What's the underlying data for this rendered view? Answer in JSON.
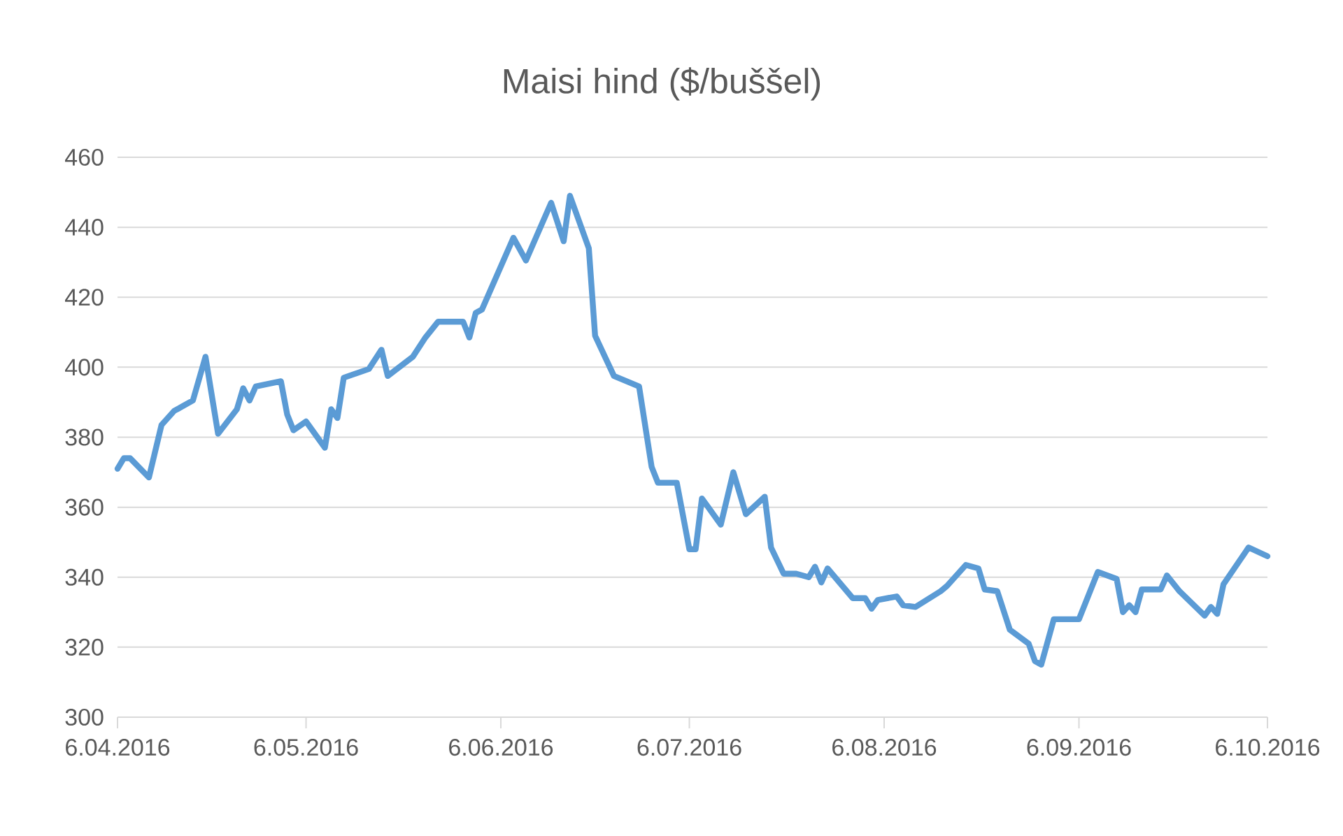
{
  "chart_data": {
    "type": "line",
    "title": "Maisi hind ($/buššel)",
    "x": [
      "2016-04-06",
      "2016-04-07",
      "2016-04-08",
      "2016-04-11",
      "2016-04-13",
      "2016-04-15",
      "2016-04-18",
      "2016-04-20",
      "2016-04-22",
      "2016-04-25",
      "2016-04-26",
      "2016-04-27",
      "2016-04-28",
      "2016-05-02",
      "2016-05-03",
      "2016-05-04",
      "2016-05-06",
      "2016-05-09",
      "2016-05-10",
      "2016-05-11",
      "2016-05-12",
      "2016-05-16",
      "2016-05-18",
      "2016-05-19",
      "2016-05-23",
      "2016-05-25",
      "2016-05-27",
      "2016-05-31",
      "2016-06-01",
      "2016-06-02",
      "2016-06-03",
      "2016-06-08",
      "2016-06-10",
      "2016-06-14",
      "2016-06-16",
      "2016-06-17",
      "2016-06-20",
      "2016-06-21",
      "2016-06-24",
      "2016-06-28",
      "2016-06-30",
      "2016-07-01",
      "2016-07-04",
      "2016-07-06",
      "2016-07-07",
      "2016-07-08",
      "2016-07-11",
      "2016-07-13",
      "2016-07-15",
      "2016-07-18",
      "2016-07-19",
      "2016-07-21",
      "2016-07-23",
      "2016-07-25",
      "2016-07-26",
      "2016-07-27",
      "2016-07-28",
      "2016-08-01",
      "2016-08-03",
      "2016-08-04",
      "2016-08-05",
      "2016-08-08",
      "2016-08-09",
      "2016-08-11",
      "2016-08-15",
      "2016-08-16",
      "2016-08-19",
      "2016-08-21",
      "2016-08-22",
      "2016-08-24",
      "2016-08-26",
      "2016-08-29",
      "2016-08-30",
      "2016-08-31",
      "2016-09-02",
      "2016-09-06",
      "2016-09-09",
      "2016-09-12",
      "2016-09-13",
      "2016-09-14",
      "2016-09-15",
      "2016-09-16",
      "2016-09-19",
      "2016-09-20",
      "2016-09-22",
      "2016-09-26",
      "2016-09-27",
      "2016-09-28",
      "2016-09-29",
      "2016-10-03",
      "2016-10-06"
    ],
    "series": [
      {
        "color": "#5b9bd5",
        "values": [
          371,
          374,
          374,
          368.5,
          383.5,
          387.5,
          390.5,
          403,
          381,
          388,
          394,
          390.5,
          394.5,
          396,
          386.5,
          382,
          384.5,
          377,
          388,
          385.5,
          397,
          399.5,
          405,
          397.5,
          403,
          408.5,
          413,
          413,
          408.5,
          415.5,
          416.5,
          437,
          430.5,
          447,
          436,
          449,
          434,
          409,
          397.5,
          394.5,
          371.5,
          367,
          367,
          348,
          348,
          362.5,
          355,
          370,
          358,
          363,
          348.5,
          341,
          341,
          340,
          343,
          338.5,
          342.5,
          334,
          334,
          331,
          333.5,
          334.5,
          332,
          331.5,
          336,
          337.5,
          343.5,
          342.5,
          336.5,
          336,
          325,
          321,
          316,
          315,
          328,
          328,
          341.5,
          339.5,
          330,
          332,
          330,
          336.5,
          336.5,
          340.5,
          336,
          329,
          331.5,
          329.5,
          338,
          348.5,
          346
        ]
      }
    ],
    "xlim": [
      "2016-04-06",
      "2016-10-06"
    ],
    "xticks": [
      {
        "value": "2016-04-06",
        "label": "6.04.2016"
      },
      {
        "value": "2016-05-06",
        "label": "6.05.2016"
      },
      {
        "value": "2016-06-06",
        "label": "6.06.2016"
      },
      {
        "value": "2016-07-06",
        "label": "6.07.2016"
      },
      {
        "value": "2016-08-06",
        "label": "6.08.2016"
      },
      {
        "value": "2016-09-06",
        "label": "6.09.2016"
      },
      {
        "value": "2016-10-06",
        "label": "6.10.2016"
      }
    ],
    "ylim": [
      300,
      460
    ],
    "yticks": [
      300,
      320,
      340,
      360,
      380,
      400,
      420,
      440,
      460
    ],
    "grid": "y",
    "marker": "none",
    "line_style": "solid"
  }
}
